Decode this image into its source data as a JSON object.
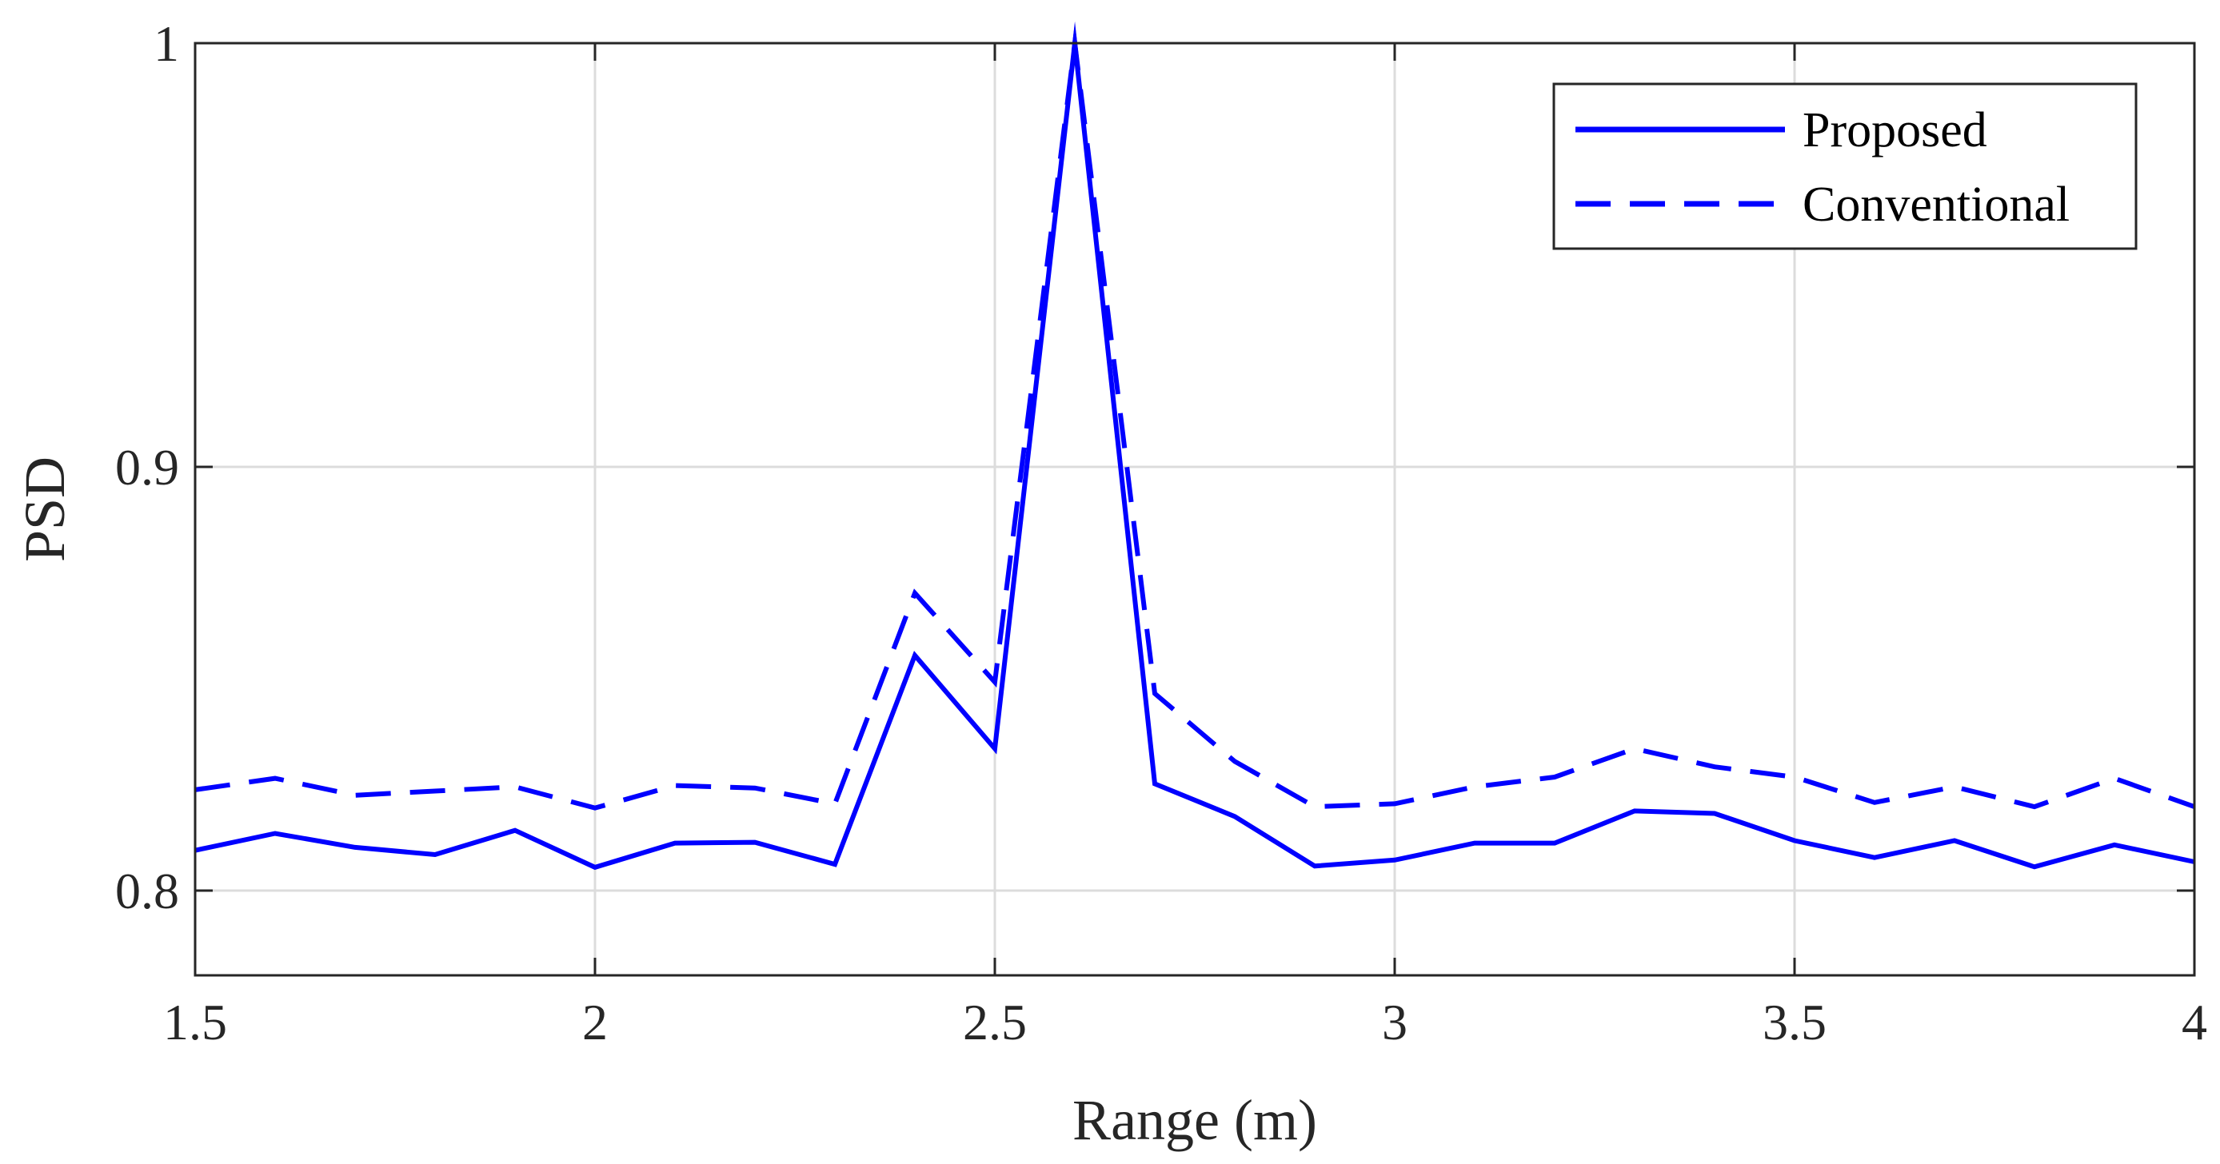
{
  "chart_data": {
    "type": "line",
    "xlabel": "Range (m)",
    "ylabel": "PSD",
    "xlim": [
      1.5,
      4
    ],
    "ylim": [
      0.78,
      1.0
    ],
    "xticks": [
      1.5,
      2,
      2.5,
      3,
      3.5,
      4
    ],
    "xtick_labels": [
      "1.5",
      "2",
      "2.5",
      "3",
      "3.5",
      "4"
    ],
    "yticks": [
      0.8,
      0.9,
      1.0
    ],
    "ytick_labels": [
      "0.8",
      "0.9",
      "1"
    ],
    "grid": true,
    "legend_position": "top-right",
    "x": [
      1.5,
      1.6,
      1.7,
      1.8,
      1.9,
      2.0,
      2.1,
      2.2,
      2.3,
      2.4,
      2.5,
      2.6,
      2.7,
      2.8,
      2.9,
      3.0,
      3.1,
      3.2,
      3.3,
      3.4,
      3.5,
      3.6,
      3.7,
      3.8,
      3.9,
      4.0
    ],
    "series": [
      {
        "name": "Proposed",
        "style": "solid",
        "color": "#0000ff",
        "values": [
          0.8095,
          0.8135,
          0.8102,
          0.8085,
          0.8142,
          0.8055,
          0.8112,
          0.8114,
          0.8062,
          0.8555,
          0.8335,
          1.0,
          0.8252,
          0.8175,
          0.8058,
          0.8072,
          0.8112,
          0.8112,
          0.8188,
          0.8182,
          0.8118,
          0.8078,
          0.8118,
          0.8056,
          0.8108,
          0.8068
        ]
      },
      {
        "name": "Conventional",
        "style": "dashed",
        "color": "#0000ff",
        "values": [
          0.8238,
          0.8265,
          0.8225,
          0.8235,
          0.8245,
          0.8195,
          0.8248,
          0.8242,
          0.8205,
          0.8702,
          0.8492,
          1.0,
          0.8465,
          0.8305,
          0.8198,
          0.8205,
          0.8245,
          0.8268,
          0.8335,
          0.8292,
          0.8268,
          0.8208,
          0.8245,
          0.8198,
          0.8265,
          0.8198
        ]
      }
    ]
  }
}
